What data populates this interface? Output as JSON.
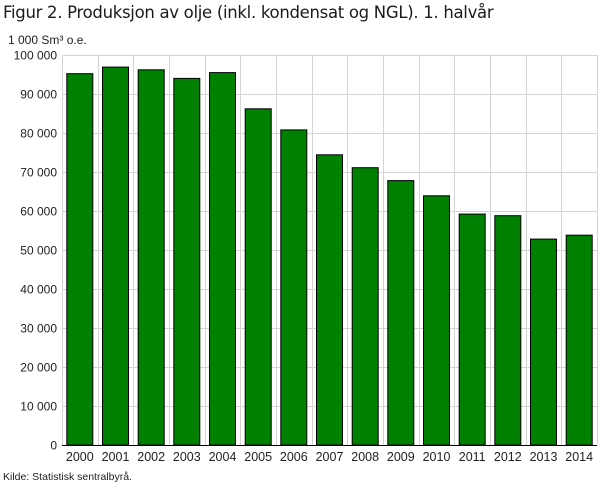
{
  "chart_data": {
    "type": "bar",
    "title": "Figur 2. Produksjon av olje (inkl. kondensat og NGL). 1. halvår",
    "ylabel": "1 000 Sm³ o.e.",
    "xlabel": "",
    "categories": [
      "2000",
      "2001",
      "2002",
      "2003",
      "2004",
      "2005",
      "2006",
      "2007",
      "2008",
      "2009",
      "2010",
      "2011",
      "2012",
      "2013",
      "2014"
    ],
    "values": [
      95200,
      96900,
      96200,
      94000,
      95500,
      86200,
      80800,
      74400,
      71100,
      67800,
      63900,
      59200,
      58800,
      52800,
      53800
    ],
    "ylim": [
      0,
      100000
    ],
    "yticks": [
      0,
      10000,
      20000,
      30000,
      40000,
      50000,
      60000,
      70000,
      80000,
      90000,
      100000
    ],
    "ytick_labels": [
      "0",
      "10 000",
      "20 000",
      "30 000",
      "40 000",
      "50 000",
      "60 000",
      "70 000",
      "80 000",
      "90 000",
      "100 000"
    ],
    "grid": true,
    "bar_color": "#008000",
    "bar_edge_color": "#000000"
  },
  "source": "Kilde: Statistisk sentralbyrå."
}
